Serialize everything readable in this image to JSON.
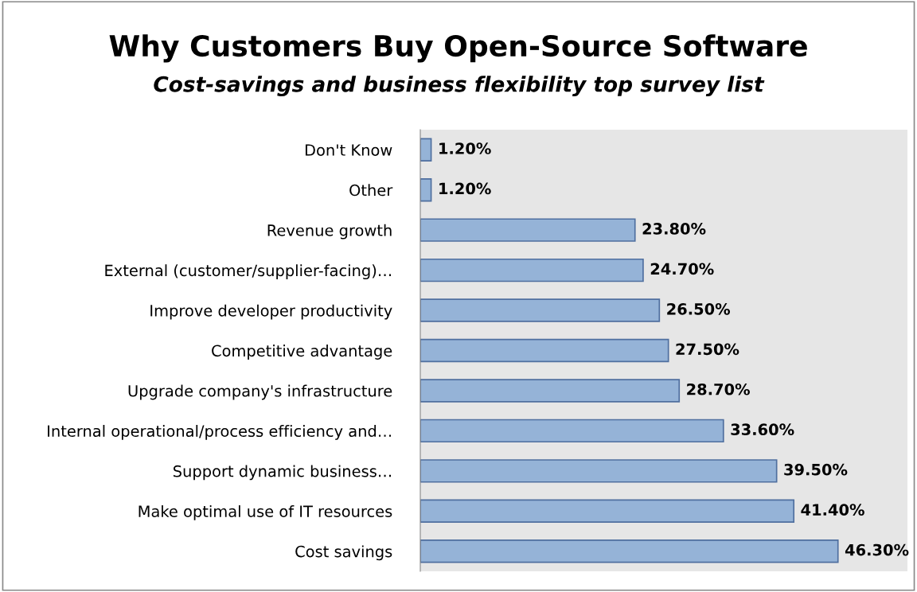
{
  "chart_data": {
    "type": "bar",
    "orientation": "horizontal",
    "title": "Why Customers Buy Open-Source Software",
    "subtitle": "Cost-savings and business flexibility top survey list",
    "categories": [
      "Don't Know",
      "Other",
      "Revenue growth",
      "External (customer/supplier-facing)…",
      "Improve developer productivity",
      "Competitive advantage",
      "Upgrade company's infrastructure",
      "Internal operational/process efficiency and…",
      "Support dynamic business…",
      "Make optimal use of IT resources",
      "Cost savings"
    ],
    "values": [
      1.2,
      1.2,
      23.8,
      24.7,
      26.5,
      27.5,
      28.7,
      33.6,
      39.5,
      41.4,
      46.3
    ],
    "value_labels": [
      "1.20%",
      "1.20%",
      "23.80%",
      "24.70%",
      "26.50%",
      "27.50%",
      "28.70%",
      "33.60%",
      "39.50%",
      "41.40%",
      "46.30%"
    ],
    "color": "#95b3d7",
    "xlim": [
      0,
      54
    ],
    "tick_labels": "y",
    "grid": false,
    "legend": false
  }
}
